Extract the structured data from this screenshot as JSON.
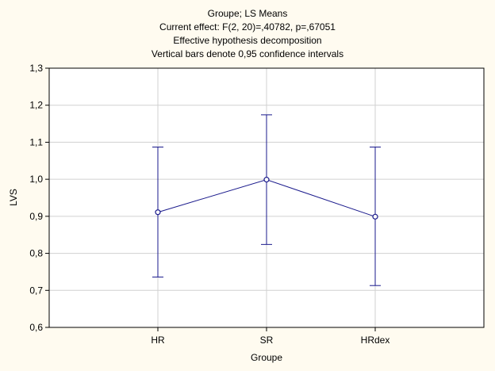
{
  "chart_data": {
    "type": "line",
    "title_lines": [
      "Groupe; LS Means",
      "Current effect: F(2, 20)=,40782, p=,67051",
      "Effective hypothesis decomposition",
      "Vertical bars denote 0,95 confidence intervals"
    ],
    "xlabel": "Groupe",
    "ylabel": "LVS",
    "categories": [
      "HR",
      "SR",
      "HRdex"
    ],
    "ylim": [
      0.6,
      1.3
    ],
    "yticks": [
      0.6,
      0.7,
      0.8,
      0.9,
      1.0,
      1.1,
      1.2,
      1.3
    ],
    "ytick_labels": [
      "0,6",
      "0,7",
      "0,8",
      "0,9",
      "1,0",
      "1,1",
      "1,2",
      "1,3"
    ],
    "series": [
      {
        "values": [
          0.911,
          0.999,
          0.899
        ],
        "ci_lower": [
          0.736,
          0.824,
          0.713
        ],
        "ci_upper": [
          1.087,
          1.174,
          1.087
        ]
      }
    ],
    "grid": true,
    "series_color": "#1a1a8c",
    "grid_color": "#d0d0d0",
    "background_color": "#fffbf0",
    "plot_background_color": "#ffffff"
  }
}
